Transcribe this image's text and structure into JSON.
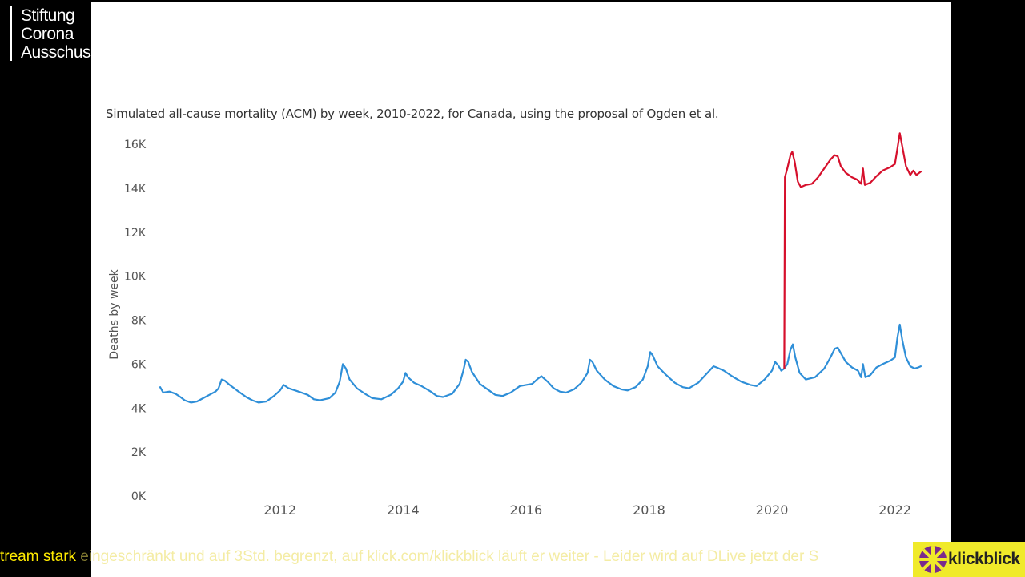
{
  "logo": {
    "lines": [
      "Stiftung",
      "Corona",
      "Ausschuss"
    ]
  },
  "ticker": {
    "lead": "tream stark",
    "rest": " eingeschränkt und auf 3Std. begrenzt, auf klick.com/klickblick läuft er weiter - Leider wird auf DLive jetzt der S"
  },
  "brand": {
    "name": "klickblick"
  },
  "chart_data": {
    "type": "line",
    "title": "Simulated all-cause mortality (ACM) by week, 2010-2022, for Canada, using the proposal of Ogden et al.",
    "ylabel": "Deaths by week",
    "xlabel": "",
    "ylim": [
      0,
      16000
    ],
    "xlim": [
      2010.05,
      2022.5
    ],
    "y_ticks": [
      0,
      2000,
      4000,
      6000,
      8000,
      10000,
      12000,
      14000,
      16000
    ],
    "y_tick_labels": [
      "0K",
      "2K",
      "4K",
      "6K",
      "8K",
      "10K",
      "12K",
      "14K",
      "16K"
    ],
    "x_ticks": [
      2012,
      2014,
      2016,
      2018,
      2020,
      2022
    ],
    "x_tick_labels": [
      "2012",
      "2014",
      "2016",
      "2018",
      "2020",
      "2022"
    ],
    "grid": false,
    "colors": {
      "blue": "#2f8fd8",
      "red": "#d6102c"
    },
    "series": [
      {
        "color": "#2f8fd8",
        "points": [
          [
            2010.05,
            4950
          ],
          [
            2010.1,
            4700
          ],
          [
            2010.2,
            4750
          ],
          [
            2010.3,
            4650
          ],
          [
            2010.38,
            4500
          ],
          [
            2010.45,
            4350
          ],
          [
            2010.55,
            4250
          ],
          [
            2010.65,
            4300
          ],
          [
            2010.75,
            4450
          ],
          [
            2010.85,
            4600
          ],
          [
            2010.95,
            4750
          ],
          [
            2011.0,
            4900
          ],
          [
            2011.05,
            5300
          ],
          [
            2011.1,
            5250
          ],
          [
            2011.18,
            5050
          ],
          [
            2011.3,
            4800
          ],
          [
            2011.45,
            4500
          ],
          [
            2011.55,
            4350
          ],
          [
            2011.65,
            4250
          ],
          [
            2011.78,
            4300
          ],
          [
            2011.9,
            4550
          ],
          [
            2012.0,
            4800
          ],
          [
            2012.06,
            5050
          ],
          [
            2012.14,
            4900
          ],
          [
            2012.3,
            4750
          ],
          [
            2012.45,
            4600
          ],
          [
            2012.55,
            4400
          ],
          [
            2012.65,
            4350
          ],
          [
            2012.8,
            4450
          ],
          [
            2012.9,
            4700
          ],
          [
            2012.97,
            5200
          ],
          [
            2013.02,
            6000
          ],
          [
            2013.07,
            5800
          ],
          [
            2013.13,
            5300
          ],
          [
            2013.25,
            4900
          ],
          [
            2013.38,
            4650
          ],
          [
            2013.5,
            4450
          ],
          [
            2013.65,
            4400
          ],
          [
            2013.8,
            4600
          ],
          [
            2013.92,
            4900
          ],
          [
            2014.0,
            5200
          ],
          [
            2014.04,
            5600
          ],
          [
            2014.08,
            5400
          ],
          [
            2014.18,
            5150
          ],
          [
            2014.3,
            5000
          ],
          [
            2014.45,
            4750
          ],
          [
            2014.55,
            4550
          ],
          [
            2014.65,
            4500
          ],
          [
            2014.8,
            4650
          ],
          [
            2014.92,
            5100
          ],
          [
            2014.98,
            5700
          ],
          [
            2015.02,
            6200
          ],
          [
            2015.06,
            6100
          ],
          [
            2015.12,
            5650
          ],
          [
            2015.25,
            5100
          ],
          [
            2015.4,
            4800
          ],
          [
            2015.5,
            4600
          ],
          [
            2015.62,
            4550
          ],
          [
            2015.75,
            4700
          ],
          [
            2015.9,
            5000
          ],
          [
            2016.0,
            5050
          ],
          [
            2016.1,
            5100
          ],
          [
            2016.2,
            5350
          ],
          [
            2016.25,
            5450
          ],
          [
            2016.35,
            5200
          ],
          [
            2016.45,
            4900
          ],
          [
            2016.55,
            4750
          ],
          [
            2016.65,
            4700
          ],
          [
            2016.78,
            4850
          ],
          [
            2016.9,
            5150
          ],
          [
            2017.0,
            5600
          ],
          [
            2017.04,
            6200
          ],
          [
            2017.08,
            6100
          ],
          [
            2017.15,
            5700
          ],
          [
            2017.28,
            5300
          ],
          [
            2017.42,
            5000
          ],
          [
            2017.55,
            4850
          ],
          [
            2017.65,
            4800
          ],
          [
            2017.78,
            4950
          ],
          [
            2017.9,
            5300
          ],
          [
            2017.98,
            5900
          ],
          [
            2018.02,
            6550
          ],
          [
            2018.06,
            6400
          ],
          [
            2018.14,
            5900
          ],
          [
            2018.28,
            5500
          ],
          [
            2018.42,
            5150
          ],
          [
            2018.55,
            4950
          ],
          [
            2018.65,
            4900
          ],
          [
            2018.8,
            5150
          ],
          [
            2018.95,
            5600
          ],
          [
            2019.05,
            5900
          ],
          [
            2019.1,
            5850
          ],
          [
            2019.22,
            5700
          ],
          [
            2019.35,
            5450
          ],
          [
            2019.5,
            5200
          ],
          [
            2019.65,
            5050
          ],
          [
            2019.75,
            5000
          ],
          [
            2019.88,
            5300
          ],
          [
            2020.0,
            5700
          ],
          [
            2020.05,
            6100
          ],
          [
            2020.1,
            5950
          ],
          [
            2020.15,
            5700
          ],
          [
            2020.2,
            5800
          ],
          [
            2020.25,
            6000
          ],
          [
            2020.3,
            6650
          ],
          [
            2020.34,
            6900
          ],
          [
            2020.38,
            6300
          ],
          [
            2020.45,
            5600
          ],
          [
            2020.55,
            5300
          ],
          [
            2020.7,
            5400
          ],
          [
            2020.85,
            5800
          ],
          [
            2020.95,
            6300
          ],
          [
            2021.02,
            6700
          ],
          [
            2021.07,
            6750
          ],
          [
            2021.12,
            6500
          ],
          [
            2021.2,
            6100
          ],
          [
            2021.3,
            5850
          ],
          [
            2021.4,
            5700
          ],
          [
            2021.45,
            5400
          ],
          [
            2021.48,
            6000
          ],
          [
            2021.52,
            5400
          ],
          [
            2021.6,
            5500
          ],
          [
            2021.7,
            5850
          ],
          [
            2021.8,
            6000
          ],
          [
            2021.92,
            6150
          ],
          [
            2022.0,
            6300
          ],
          [
            2022.04,
            7200
          ],
          [
            2022.08,
            7800
          ],
          [
            2022.12,
            7100
          ],
          [
            2022.18,
            6300
          ],
          [
            2022.25,
            5900
          ],
          [
            2022.32,
            5800
          ],
          [
            2022.38,
            5850
          ],
          [
            2022.42,
            5900
          ]
        ]
      },
      {
        "color": "#d6102c",
        "points": [
          [
            2020.2,
            5800
          ],
          [
            2020.21,
            14500
          ],
          [
            2020.25,
            14900
          ],
          [
            2020.3,
            15500
          ],
          [
            2020.33,
            15650
          ],
          [
            2020.37,
            15200
          ],
          [
            2020.42,
            14300
          ],
          [
            2020.47,
            14050
          ],
          [
            2020.55,
            14150
          ],
          [
            2020.65,
            14200
          ],
          [
            2020.75,
            14500
          ],
          [
            2020.85,
            14900
          ],
          [
            2020.95,
            15300
          ],
          [
            2021.02,
            15500
          ],
          [
            2021.07,
            15450
          ],
          [
            2021.12,
            15000
          ],
          [
            2021.2,
            14700
          ],
          [
            2021.3,
            14500
          ],
          [
            2021.38,
            14400
          ],
          [
            2021.45,
            14200
          ],
          [
            2021.48,
            14900
          ],
          [
            2021.51,
            14150
          ],
          [
            2021.6,
            14250
          ],
          [
            2021.7,
            14550
          ],
          [
            2021.8,
            14800
          ],
          [
            2021.92,
            14950
          ],
          [
            2022.0,
            15100
          ],
          [
            2022.04,
            15800
          ],
          [
            2022.08,
            16500
          ],
          [
            2022.12,
            15900
          ],
          [
            2022.18,
            15000
          ],
          [
            2022.25,
            14600
          ],
          [
            2022.3,
            14800
          ],
          [
            2022.35,
            14600
          ],
          [
            2022.42,
            14750
          ]
        ]
      }
    ]
  }
}
